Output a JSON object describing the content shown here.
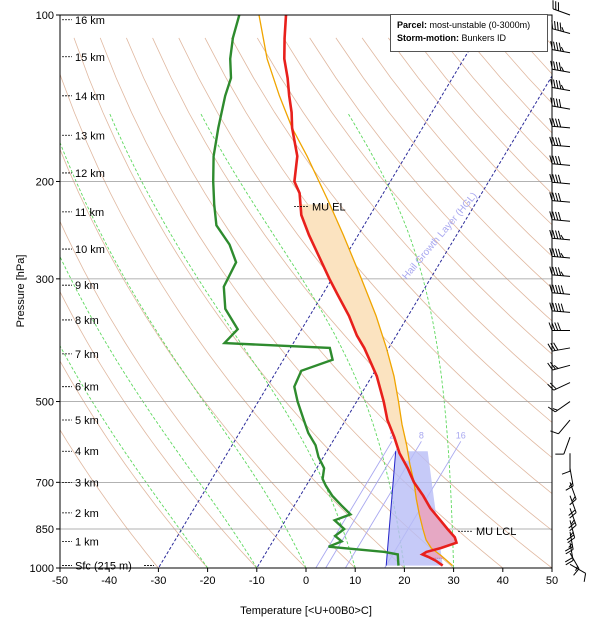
{
  "chart_data": {
    "type": "skew-t log-p sounding",
    "xlabel": "Temperature [<U+00B0>C]",
    "ylabel": "Pressure [hPa]",
    "xlim": [
      -50,
      50
    ],
    "ylim_hpa": [
      1000,
      100
    ],
    "x_ticks": [
      "-50",
      "-40",
      "-30",
      "-20",
      "-10",
      "0",
      "10",
      "20",
      "30",
      "40",
      "50"
    ],
    "y_ticks": [
      {
        "p": 100,
        "label": "100"
      },
      {
        "p": 200,
        "label": "200"
      },
      {
        "p": 300,
        "label": "300"
      },
      {
        "p": 500,
        "label": "500"
      },
      {
        "p": 700,
        "label": "700"
      },
      {
        "p": 850,
        "label": "850"
      },
      {
        "p": 1000,
        "label": "1000"
      }
    ],
    "height_labels": [
      {
        "p": 990,
        "label": "Sfc (215 m)"
      },
      {
        "p": 895,
        "label": "1 km"
      },
      {
        "p": 795,
        "label": "2 km"
      },
      {
        "p": 700,
        "label": "3 km"
      },
      {
        "p": 615,
        "label": "4 km"
      },
      {
        "p": 540,
        "label": "5 km"
      },
      {
        "p": 470,
        "label": "6 km"
      },
      {
        "p": 410,
        "label": "7 km"
      },
      {
        "p": 356,
        "label": "8 km"
      },
      {
        "p": 308,
        "label": "9 km"
      },
      {
        "p": 265,
        "label": "10 km"
      },
      {
        "p": 227,
        "label": "11 km"
      },
      {
        "p": 193,
        "label": "12 km"
      },
      {
        "p": 165,
        "label": "13 km"
      },
      {
        "p": 140,
        "label": "14 km"
      },
      {
        "p": 119,
        "label": "15 km"
      },
      {
        "p": 102,
        "label": "16 km"
      }
    ],
    "temperature": [
      {
        "p": 990,
        "t": 27.5
      },
      {
        "p": 970,
        "t": 25.5
      },
      {
        "p": 955,
        "t": 23.5
      },
      {
        "p": 945,
        "t": 22.0
      },
      {
        "p": 935,
        "t": 22.5
      },
      {
        "p": 920,
        "t": 25.0
      },
      {
        "p": 900,
        "t": 27.5
      },
      {
        "p": 880,
        "t": 26.5
      },
      {
        "p": 850,
        "t": 24.0
      },
      {
        "p": 820,
        "t": 21.5
      },
      {
        "p": 780,
        "t": 18.0
      },
      {
        "p": 740,
        "t": 15.0
      },
      {
        "p": 700,
        "t": 11.5
      },
      {
        "p": 660,
        "t": 8.5
      },
      {
        "p": 620,
        "t": 5.0
      },
      {
        "p": 580,
        "t": 2.0
      },
      {
        "p": 540,
        "t": -1.5
      },
      {
        "p": 500,
        "t": -4.5
      },
      {
        "p": 450,
        "t": -9.0
      },
      {
        "p": 420,
        "t": -12.5
      },
      {
        "p": 400,
        "t": -15.0
      },
      {
        "p": 380,
        "t": -18.0
      },
      {
        "p": 350,
        "t": -22.0
      },
      {
        "p": 320,
        "t": -27.0
      },
      {
        "p": 300,
        "t": -30.5
      },
      {
        "p": 270,
        "t": -36.0
      },
      {
        "p": 250,
        "t": -40.0
      },
      {
        "p": 230,
        "t": -44.0
      },
      {
        "p": 210,
        "t": -47.0
      },
      {
        "p": 200,
        "t": -49.5
      },
      {
        "p": 180,
        "t": -52.0
      },
      {
        "p": 160,
        "t": -56.5
      },
      {
        "p": 150,
        "t": -58.5
      },
      {
        "p": 140,
        "t": -61.0
      },
      {
        "p": 130,
        "t": -63.5
      },
      {
        "p": 120,
        "t": -66.5
      },
      {
        "p": 110,
        "t": -69.0
      },
      {
        "p": 100,
        "t": -71.5
      }
    ],
    "dewpoint": [
      {
        "p": 990,
        "t": 18.5
      },
      {
        "p": 975,
        "t": 18.0
      },
      {
        "p": 960,
        "t": 17.5
      },
      {
        "p": 945,
        "t": 17.0
      },
      {
        "p": 935,
        "t": 14.0
      },
      {
        "p": 925,
        "t": 8.0
      },
      {
        "p": 915,
        "t": 2.0
      },
      {
        "p": 895,
        "t": 4.0
      },
      {
        "p": 875,
        "t": 2.0
      },
      {
        "p": 850,
        "t": 3.0
      },
      {
        "p": 820,
        "t": 0.0
      },
      {
        "p": 800,
        "t": 2.5
      },
      {
        "p": 770,
        "t": -0.5
      },
      {
        "p": 740,
        "t": -3.5
      },
      {
        "p": 710,
        "t": -6.0
      },
      {
        "p": 690,
        "t": -7.5
      },
      {
        "p": 660,
        "t": -8.5
      },
      {
        "p": 630,
        "t": -11.0
      },
      {
        "p": 600,
        "t": -13.0
      },
      {
        "p": 570,
        "t": -16.0
      },
      {
        "p": 540,
        "t": -18.5
      },
      {
        "p": 500,
        "t": -22.0
      },
      {
        "p": 470,
        "t": -24.5
      },
      {
        "p": 440,
        "t": -25.0
      },
      {
        "p": 420,
        "t": -20.0
      },
      {
        "p": 400,
        "t": -22.0
      },
      {
        "p": 392,
        "t": -44.0
      },
      {
        "p": 370,
        "t": -43.0
      },
      {
        "p": 340,
        "t": -48.0
      },
      {
        "p": 310,
        "t": -51.0
      },
      {
        "p": 280,
        "t": -51.5
      },
      {
        "p": 260,
        "t": -55.0
      },
      {
        "p": 240,
        "t": -60.0
      },
      {
        "p": 220,
        "t": -63.0
      },
      {
        "p": 200,
        "t": -66.0
      },
      {
        "p": 180,
        "t": -69.0
      },
      {
        "p": 160,
        "t": -71.5
      },
      {
        "p": 140,
        "t": -74.0
      },
      {
        "p": 130,
        "t": -75.0
      },
      {
        "p": 120,
        "t": -77.5
      },
      {
        "p": 110,
        "t": -79.5
      },
      {
        "p": 100,
        "t": -81.0
      }
    ],
    "parcel": [
      {
        "p": 990,
        "t": 29.5
      },
      {
        "p": 950,
        "t": 26.0
      },
      {
        "p": 920,
        "t": 23.0
      },
      {
        "p": 890,
        "t": 21.0
      },
      {
        "p": 850,
        "t": 19.0
      },
      {
        "p": 800,
        "t": 16.5
      },
      {
        "p": 750,
        "t": 14.0
      },
      {
        "p": 700,
        "t": 11.5
      },
      {
        "p": 650,
        "t": 8.5
      },
      {
        "p": 600,
        "t": 5.5
      },
      {
        "p": 550,
        "t": 2.0
      },
      {
        "p": 500,
        "t": -1.5
      },
      {
        "p": 450,
        "t": -5.5
      },
      {
        "p": 400,
        "t": -10.5
      },
      {
        "p": 350,
        "t": -16.5
      },
      {
        "p": 300,
        "t": -24.0
      },
      {
        "p": 250,
        "t": -33.0
      },
      {
        "p": 220,
        "t": -39.5
      },
      {
        "p": 200,
        "t": -44.5
      },
      {
        "p": 180,
        "t": -50.0
      },
      {
        "p": 160,
        "t": -56.5
      },
      {
        "p": 140,
        "t": -63.0
      },
      {
        "p": 120,
        "t": -70.0
      },
      {
        "p": 100,
        "t": -77.0
      }
    ],
    "isotherms_labeled": [
      {
        "t": 2,
        "label": "2"
      },
      {
        "t": 4,
        "label": "4"
      },
      {
        "t": 8,
        "label": "8"
      },
      {
        "t": 16,
        "label": "16"
      }
    ],
    "hgl_label": "Hail Growth Layer (HGL)",
    "annotations": [
      {
        "p": 222,
        "label": "MU EL"
      },
      {
        "p": 858,
        "label": "MU LCL"
      }
    ],
    "legend": {
      "parcel_label": "Parcel:",
      "parcel_value": "most-unstable (0-3000m)",
      "storm_label": "Storm-motion:",
      "storm_value": "Bunkers ID"
    },
    "wind_barbs": [
      {
        "p": 100,
        "dir": 290,
        "spd": 30
      },
      {
        "p": 108,
        "dir": 285,
        "spd": 45
      },
      {
        "p": 117,
        "dir": 280,
        "spd": 45
      },
      {
        "p": 127,
        "dir": 280,
        "spd": 45
      },
      {
        "p": 137,
        "dir": 280,
        "spd": 45
      },
      {
        "p": 148,
        "dir": 280,
        "spd": 40
      },
      {
        "p": 160,
        "dir": 275,
        "spd": 40
      },
      {
        "p": 173,
        "dir": 275,
        "spd": 40
      },
      {
        "p": 187,
        "dir": 275,
        "spd": 40
      },
      {
        "p": 202,
        "dir": 275,
        "spd": 40
      },
      {
        "p": 218,
        "dir": 275,
        "spd": 40
      },
      {
        "p": 236,
        "dir": 275,
        "spd": 40
      },
      {
        "p": 255,
        "dir": 275,
        "spd": 45
      },
      {
        "p": 275,
        "dir": 275,
        "spd": 45
      },
      {
        "p": 297,
        "dir": 275,
        "spd": 45
      },
      {
        "p": 320,
        "dir": 275,
        "spd": 50
      },
      {
        "p": 345,
        "dir": 275,
        "spd": 50
      },
      {
        "p": 372,
        "dir": 270,
        "spd": 40
      },
      {
        "p": 400,
        "dir": 260,
        "spd": 30
      },
      {
        "p": 430,
        "dir": 255,
        "spd": 25
      },
      {
        "p": 462,
        "dir": 245,
        "spd": 20
      },
      {
        "p": 500,
        "dir": 235,
        "spd": 15
      },
      {
        "p": 540,
        "dir": 220,
        "spd": 10
      },
      {
        "p": 580,
        "dir": 200,
        "spd": 10
      },
      {
        "p": 620,
        "dir": 180,
        "spd": 10
      },
      {
        "p": 660,
        "dir": 170,
        "spd": 15
      },
      {
        "p": 700,
        "dir": 160,
        "spd": 15
      },
      {
        "p": 740,
        "dir": 160,
        "spd": 20
      },
      {
        "p": 780,
        "dir": 160,
        "spd": 25
      },
      {
        "p": 820,
        "dir": 165,
        "spd": 25
      },
      {
        "p": 860,
        "dir": 170,
        "spd": 25
      },
      {
        "p": 900,
        "dir": 170,
        "spd": 20
      },
      {
        "p": 940,
        "dir": 150,
        "spd": 15
      },
      {
        "p": 985,
        "dir": 120,
        "spd": 10
      }
    ],
    "colors": {
      "temperature": "#e8201c",
      "dewpoint": "#2e8b2e",
      "parcel": "#f0a500",
      "cape_fill": "#fbe3c0",
      "cin_fill": "#e6a8c4",
      "dry_adiabat": "#e0b8a0",
      "moist_adiabat": "#5ed85e",
      "isotherm_blue": "#a9a8f0",
      "hgl_line": "#2a2a9a",
      "inflow_fill": "#b8bdf6",
      "gridline": "#999999"
    }
  }
}
